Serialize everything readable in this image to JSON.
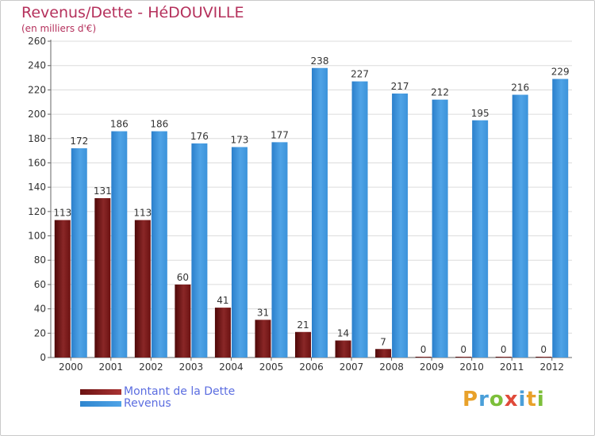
{
  "title": "Revenus/Dette - HéDOUVILLE",
  "subtitle": "(en milliers d'€)",
  "legend": {
    "debt_label": "Montant de la Dette",
    "revenue_label": "Revenus"
  },
  "brand": {
    "letters": [
      "P",
      "r",
      "o",
      "x",
      "i",
      "t",
      "i"
    ],
    "colors": [
      "#e8a12a",
      "#4a9fd9",
      "#7cbf3a",
      "#e04a3a",
      "#4a9fd9",
      "#e8a12a",
      "#7cbf3a"
    ]
  },
  "colors": {
    "debt": "#6b1212",
    "revenue": "#4fa3e6",
    "grid": "#dcdcdc",
    "axis": "#666666"
  },
  "chart_data": {
    "type": "bar",
    "categories": [
      "2000",
      "2001",
      "2002",
      "2003",
      "2004",
      "2005",
      "2006",
      "2007",
      "2008",
      "2009",
      "2010",
      "2011",
      "2012"
    ],
    "series": [
      {
        "name": "Montant de la Dette",
        "values": [
          113,
          131,
          113,
          60,
          41,
          31,
          21,
          14,
          7,
          0,
          0,
          0,
          0
        ]
      },
      {
        "name": "Revenus",
        "values": [
          172,
          186,
          186,
          176,
          173,
          177,
          238,
          227,
          217,
          212,
          195,
          216,
          229
        ]
      }
    ],
    "yticks": [
      0,
      20,
      40,
      60,
      80,
      100,
      120,
      140,
      160,
      180,
      200,
      220,
      240,
      260
    ],
    "ylim": [
      0,
      260
    ],
    "grid": true,
    "legend_position": "bottom-left"
  }
}
